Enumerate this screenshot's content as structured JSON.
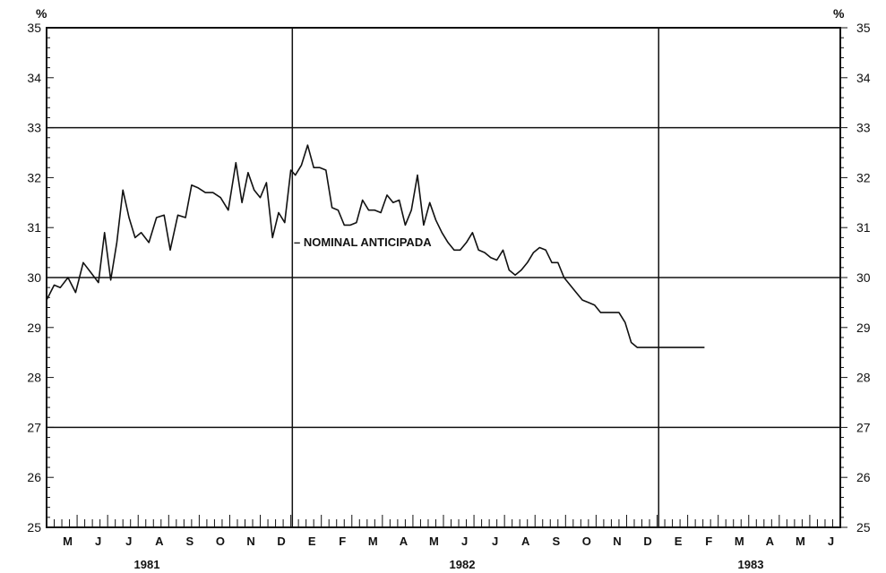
{
  "chart_data": {
    "type": "line",
    "title": "",
    "y_unit": "%",
    "ylim": [
      25,
      35
    ],
    "yticks": [
      25,
      26,
      27,
      28,
      29,
      30,
      31,
      32,
      33,
      34,
      35
    ],
    "grid": {
      "horizontal": [
        27,
        30,
        33
      ],
      "vertical_year_breaks": true
    },
    "x_months": [
      "M",
      "J",
      "J",
      "A",
      "S",
      "O",
      "N",
      "D",
      "E",
      "F",
      "M",
      "A",
      "M",
      "J",
      "J",
      "A",
      "S",
      "O",
      "N",
      "D",
      "E",
      "F",
      "M",
      "A",
      "M",
      "J"
    ],
    "x_years": [
      "1981",
      "1982",
      "1983"
    ],
    "annotation": "NOMINAL ANTICIPADA",
    "series": [
      {
        "name": "",
        "x": [
          0.0,
          0.25,
          0.45,
          0.7,
          0.95,
          1.2,
          1.45,
          1.7,
          1.9,
          2.1,
          2.3,
          2.5,
          2.7,
          2.9,
          3.1,
          3.35,
          3.6,
          3.85,
          4.05,
          4.3,
          4.55,
          4.75,
          4.95,
          5.2,
          5.45,
          5.7,
          5.95,
          6.2,
          6.4,
          6.6,
          6.8,
          7.0,
          7.2,
          7.4,
          7.6,
          7.8,
          8.0,
          8.15,
          8.35,
          8.55,
          8.75,
          8.95,
          9.15,
          9.35,
          9.55,
          9.75,
          9.95,
          10.15,
          10.35,
          10.55,
          10.75,
          10.95,
          11.15,
          11.35,
          11.55,
          11.75,
          11.95,
          12.15,
          12.35,
          12.55,
          12.75,
          12.95,
          13.15,
          13.35,
          13.55,
          13.75,
          13.95,
          14.15,
          14.35,
          14.55,
          14.75,
          14.95,
          15.15,
          15.35,
          15.55,
          15.75,
          15.95,
          16.15,
          16.35,
          16.55,
          16.75,
          16.95,
          17.15,
          17.35,
          17.55,
          17.75,
          17.95,
          18.15,
          18.35,
          18.55,
          18.75,
          18.95,
          19.15,
          19.35,
          19.55,
          19.75,
          19.95,
          20.15,
          20.35,
          20.55,
          20.75,
          20.95,
          21.15,
          21.35,
          21.55
        ],
        "y": [
          29.55,
          29.85,
          29.8,
          30.0,
          29.7,
          30.3,
          30.1,
          29.9,
          30.9,
          29.95,
          30.7,
          31.75,
          31.2,
          30.8,
          30.9,
          30.7,
          31.2,
          31.25,
          30.55,
          31.25,
          31.2,
          31.85,
          31.8,
          31.7,
          31.7,
          31.6,
          31.35,
          32.3,
          31.5,
          32.1,
          31.75,
          31.6,
          31.9,
          30.8,
          31.3,
          31.1,
          32.15,
          32.05,
          32.25,
          32.65,
          32.2,
          32.2,
          32.15,
          31.4,
          31.35,
          31.05,
          31.05,
          31.1,
          31.55,
          31.35,
          31.35,
          31.3,
          31.65,
          31.5,
          31.55,
          31.05,
          31.35,
          32.05,
          31.05,
          31.5,
          31.15,
          30.9,
          30.7,
          30.55,
          30.55,
          30.7,
          30.9,
          30.55,
          30.5,
          30.4,
          30.35,
          30.55,
          30.15,
          30.05,
          30.15,
          30.3,
          30.5,
          30.6,
          30.55,
          30.3,
          30.3,
          30.0,
          29.85,
          29.7,
          29.55,
          29.5,
          29.45,
          29.3,
          29.3,
          29.3,
          29.3,
          29.1,
          28.7,
          28.6,
          28.6,
          28.6,
          28.6,
          28.6,
          28.6,
          28.6,
          28.6,
          28.6,
          28.6,
          28.6,
          28.6
        ]
      }
    ]
  }
}
